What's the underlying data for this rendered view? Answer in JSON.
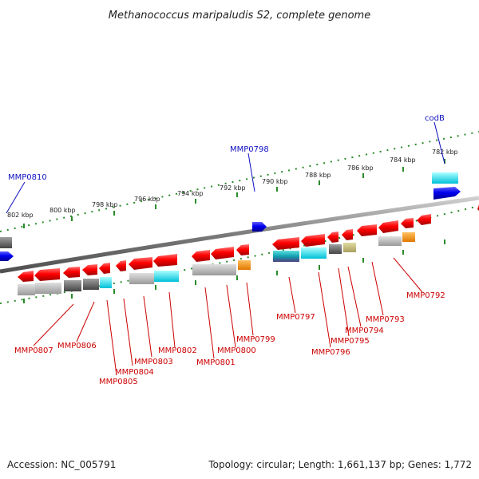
{
  "title": "Methanococcus maripaludis S2, complete genome",
  "accession": "Accession: NC_005791",
  "topology": "Topology: circular; Length: 1,661,137 bp; Genes: 1,772",
  "kbp_ticks": [
    "802 kbp",
    "800 kbp",
    "798 kbp",
    "796 kbp",
    "794 kbp",
    "792 kbp",
    "790 kbp",
    "788 kbp",
    "786 kbp",
    "784 kbp",
    "782 kbp"
  ],
  "upper_labels": [
    "MMP0810",
    "MMP0798",
    "codB"
  ],
  "lower_labels": [
    "MMP0807",
    "MMP0806",
    "MMP0805",
    "MMP0804",
    "MMP0803",
    "MMP0802",
    "MMP0801",
    "MMP0800",
    "MMP0799",
    "MMP0797",
    "MMP0796",
    "MMP0795",
    "MMP0794",
    "MMP0793",
    "MMP0792"
  ],
  "colors": {
    "gene_red": "#e8000c",
    "gene_blue": "#0000e0",
    "label_red": "#cc0000",
    "label_blue": "#1010c0",
    "tick_green": "#2a8a2a",
    "backbone": "#888888"
  }
}
